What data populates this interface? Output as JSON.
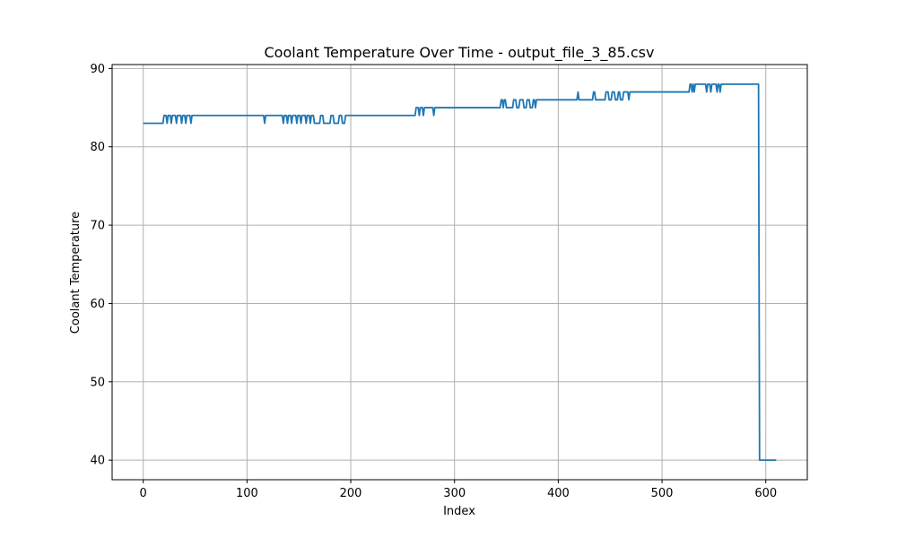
{
  "chart_data": {
    "type": "line",
    "title": "Coolant Temperature Over Time - output_file_3_85.csv",
    "xlabel": "Index",
    "ylabel": "Coolant Temperature",
    "xlim": [
      -30,
      640
    ],
    "ylim": [
      37.5,
      90.5
    ],
    "xticks": [
      0,
      100,
      200,
      300,
      400,
      500,
      600
    ],
    "yticks": [
      40,
      50,
      60,
      70,
      80,
      90
    ],
    "grid": true,
    "series": [
      {
        "color": "#1f77b4",
        "points": [
          [
            0,
            83
          ],
          [
            19,
            83
          ],
          [
            20,
            84
          ],
          [
            22,
            84
          ],
          [
            23,
            83
          ],
          [
            24,
            84
          ],
          [
            26,
            84
          ],
          [
            27,
            83
          ],
          [
            28,
            84
          ],
          [
            31,
            84
          ],
          [
            32,
            83
          ],
          [
            33,
            84
          ],
          [
            36,
            84
          ],
          [
            37,
            83
          ],
          [
            38,
            84
          ],
          [
            40,
            84
          ],
          [
            41,
            83
          ],
          [
            42,
            84
          ],
          [
            45,
            84
          ],
          [
            46,
            83
          ],
          [
            47,
            84
          ],
          [
            116,
            84
          ],
          [
            117,
            83
          ],
          [
            118,
            84
          ],
          [
            134,
            84
          ],
          [
            135,
            83
          ],
          [
            136,
            84
          ],
          [
            138,
            84
          ],
          [
            139,
            83
          ],
          [
            140,
            84
          ],
          [
            142,
            84
          ],
          [
            143,
            83
          ],
          [
            144,
            84
          ],
          [
            147,
            84
          ],
          [
            148,
            83
          ],
          [
            149,
            84
          ],
          [
            151,
            84
          ],
          [
            152,
            83
          ],
          [
            153,
            84
          ],
          [
            156,
            84
          ],
          [
            157,
            83
          ],
          [
            158,
            84
          ],
          [
            160,
            84
          ],
          [
            161,
            83
          ],
          [
            162,
            84
          ],
          [
            164,
            84
          ],
          [
            165,
            83
          ],
          [
            170,
            83
          ],
          [
            171,
            84
          ],
          [
            173,
            84
          ],
          [
            174,
            83
          ],
          [
            180,
            83
          ],
          [
            181,
            84
          ],
          [
            183,
            84
          ],
          [
            184,
            83
          ],
          [
            188,
            83
          ],
          [
            189,
            84
          ],
          [
            191,
            84
          ],
          [
            192,
            83
          ],
          [
            194,
            83
          ],
          [
            195,
            84
          ],
          [
            262,
            84
          ],
          [
            263,
            85
          ],
          [
            265,
            85
          ],
          [
            266,
            84
          ],
          [
            267,
            85
          ],
          [
            269,
            85
          ],
          [
            270,
            84
          ],
          [
            271,
            85
          ],
          [
            279,
            85
          ],
          [
            280,
            84
          ],
          [
            281,
            85
          ],
          [
            344,
            85
          ],
          [
            345,
            86
          ],
          [
            346,
            86
          ],
          [
            347,
            85
          ],
          [
            348,
            86
          ],
          [
            349,
            86
          ],
          [
            350,
            85
          ],
          [
            356,
            85
          ],
          [
            357,
            86
          ],
          [
            359,
            86
          ],
          [
            360,
            85
          ],
          [
            362,
            85
          ],
          [
            363,
            86
          ],
          [
            366,
            86
          ],
          [
            367,
            85
          ],
          [
            369,
            85
          ],
          [
            370,
            86
          ],
          [
            372,
            86
          ],
          [
            373,
            85
          ],
          [
            375,
            85
          ],
          [
            376,
            86
          ],
          [
            377,
            86
          ],
          [
            378,
            85
          ],
          [
            379,
            86
          ],
          [
            418,
            86
          ],
          [
            419,
            87
          ],
          [
            420,
            86
          ],
          [
            433,
            86
          ],
          [
            434,
            87
          ],
          [
            435,
            87
          ],
          [
            436,
            86
          ],
          [
            445,
            86
          ],
          [
            446,
            87
          ],
          [
            448,
            87
          ],
          [
            449,
            86
          ],
          [
            451,
            86
          ],
          [
            452,
            87
          ],
          [
            454,
            87
          ],
          [
            455,
            86
          ],
          [
            457,
            86
          ],
          [
            458,
            87
          ],
          [
            459,
            87
          ],
          [
            460,
            86
          ],
          [
            462,
            86
          ],
          [
            463,
            87
          ],
          [
            467,
            87
          ],
          [
            468,
            86
          ],
          [
            469,
            87
          ],
          [
            526,
            87
          ],
          [
            527,
            88
          ],
          [
            528,
            88
          ],
          [
            529,
            87
          ],
          [
            530,
            88
          ],
          [
            531,
            87
          ],
          [
            532,
            88
          ],
          [
            542,
            88
          ],
          [
            543,
            87
          ],
          [
            544,
            88
          ],
          [
            546,
            88
          ],
          [
            547,
            87
          ],
          [
            548,
            88
          ],
          [
            552,
            88
          ],
          [
            553,
            87
          ],
          [
            554,
            88
          ],
          [
            555,
            88
          ],
          [
            556,
            87
          ],
          [
            557,
            88
          ],
          [
            593,
            88
          ],
          [
            594,
            40
          ],
          [
            610,
            40
          ]
        ]
      }
    ]
  }
}
